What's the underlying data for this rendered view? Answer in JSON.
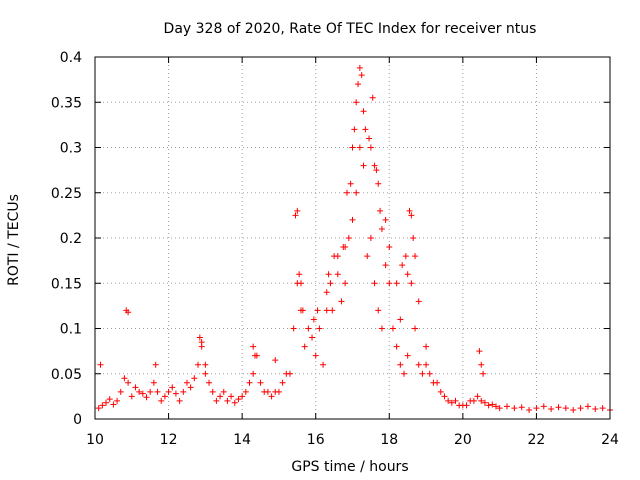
{
  "chart_data": {
    "type": "scatter",
    "title": "Day 328 of 2020, Rate Of TEC Index for receiver ntus",
    "xlabel": "GPS time / hours",
    "ylabel": "ROTI / TECUs",
    "xlim": [
      10,
      24
    ],
    "ylim": [
      0,
      0.4
    ],
    "x_ticks": [
      "10",
      "12",
      "14",
      "16",
      "18",
      "20",
      "22",
      "24"
    ],
    "y_ticks": [
      "0",
      "0.05",
      "0.1",
      "0.15",
      "0.2",
      "0.25",
      "0.3",
      "0.35",
      "0.4"
    ],
    "grid": true,
    "marker": "+",
    "color": "#ff0000",
    "series": [
      {
        "name": "ROTI",
        "x": [
          10.1,
          10.2,
          10.3,
          10.4,
          10.5,
          10.6,
          10.7,
          10.8,
          10.9,
          11.0,
          11.1,
          11.2,
          11.3,
          11.4,
          11.5,
          11.6,
          11.7,
          11.8,
          11.9,
          12.0,
          12.1,
          12.2,
          12.3,
          12.4,
          12.5,
          12.6,
          12.7,
          12.8,
          12.9,
          13.0,
          13.1,
          13.2,
          13.3,
          13.4,
          13.5,
          13.6,
          13.7,
          13.8,
          13.9,
          14.0,
          14.1,
          14.2,
          14.3,
          14.4,
          14.5,
          14.6,
          14.7,
          14.8,
          14.9,
          15.0,
          15.1,
          15.2,
          15.3,
          15.4,
          15.5,
          15.6,
          15.7,
          15.8,
          15.9,
          16.0,
          16.1,
          16.2,
          16.3,
          16.4,
          16.5,
          16.6,
          16.7,
          16.8,
          16.9,
          17.0,
          17.1,
          17.2,
          17.3,
          17.4,
          17.5,
          17.6,
          17.7,
          17.8,
          17.9,
          18.0,
          18.1,
          18.2,
          18.3,
          18.4,
          18.5,
          18.6,
          18.7,
          18.8,
          18.9,
          19.0,
          19.1,
          19.2,
          19.3,
          19.4,
          19.5,
          19.6,
          19.7,
          19.8,
          19.9,
          20.0,
          20.1,
          20.2,
          20.3,
          20.4,
          20.5,
          20.6,
          20.7,
          20.8,
          20.9,
          21.0,
          21.2,
          21.4,
          21.6,
          21.8,
          22.0,
          22.2,
          22.4,
          22.6,
          22.8,
          23.0,
          23.2,
          23.4,
          23.6,
          23.8,
          24.0,
          10.85,
          10.9,
          10.15,
          11.65,
          12.85,
          12.9,
          13.0,
          14.3,
          14.35,
          14.9,
          15.45,
          15.5,
          15.55,
          15.6,
          15.65,
          15.95,
          16.05,
          16.3,
          16.35,
          16.45,
          16.6,
          16.75,
          16.8,
          16.85,
          16.95,
          17.0,
          17.05,
          17.1,
          17.15,
          17.2,
          17.25,
          17.3,
          17.35,
          17.45,
          17.5,
          17.55,
          17.6,
          17.65,
          17.7,
          17.75,
          17.8,
          17.9,
          18.0,
          18.2,
          18.3,
          18.35,
          18.45,
          18.5,
          18.55,
          18.6,
          18.65,
          18.7,
          18.8,
          19.0,
          20.45,
          20.5,
          20.55
        ],
        "y": [
          0.012,
          0.015,
          0.018,
          0.022,
          0.016,
          0.02,
          0.03,
          0.045,
          0.04,
          0.025,
          0.035,
          0.03,
          0.028,
          0.024,
          0.03,
          0.04,
          0.03,
          0.02,
          0.025,
          0.03,
          0.035,
          0.028,
          0.02,
          0.03,
          0.04,
          0.035,
          0.045,
          0.06,
          0.08,
          0.05,
          0.04,
          0.03,
          0.02,
          0.025,
          0.03,
          0.02,
          0.025,
          0.018,
          0.022,
          0.025,
          0.03,
          0.04,
          0.05,
          0.07,
          0.04,
          0.03,
          0.03,
          0.025,
          0.03,
          0.03,
          0.04,
          0.05,
          0.05,
          0.1,
          0.15,
          0.12,
          0.08,
          0.1,
          0.09,
          0.07,
          0.1,
          0.06,
          0.12,
          0.15,
          0.18,
          0.16,
          0.13,
          0.15,
          0.2,
          0.22,
          0.25,
          0.3,
          0.28,
          0.18,
          0.2,
          0.15,
          0.12,
          0.1,
          0.17,
          0.15,
          0.1,
          0.08,
          0.06,
          0.05,
          0.07,
          0.15,
          0.1,
          0.06,
          0.05,
          0.06,
          0.05,
          0.04,
          0.04,
          0.03,
          0.025,
          0.02,
          0.018,
          0.02,
          0.015,
          0.015,
          0.015,
          0.02,
          0.02,
          0.025,
          0.02,
          0.018,
          0.015,
          0.016,
          0.014,
          0.012,
          0.014,
          0.012,
          0.013,
          0.01,
          0.012,
          0.014,
          0.011,
          0.013,
          0.012,
          0.01,
          0.012,
          0.014,
          0.011,
          0.012,
          0.01,
          0.12,
          0.118,
          0.06,
          0.06,
          0.09,
          0.085,
          0.06,
          0.08,
          0.07,
          0.065,
          0.225,
          0.23,
          0.16,
          0.15,
          0.12,
          0.11,
          0.12,
          0.14,
          0.16,
          0.12,
          0.18,
          0.19,
          0.19,
          0.25,
          0.26,
          0.3,
          0.32,
          0.35,
          0.37,
          0.388,
          0.38,
          0.34,
          0.32,
          0.31,
          0.3,
          0.355,
          0.28,
          0.275,
          0.26,
          0.23,
          0.21,
          0.22,
          0.19,
          0.15,
          0.11,
          0.17,
          0.18,
          0.16,
          0.23,
          0.225,
          0.2,
          0.18,
          0.13,
          0.08,
          0.075,
          0.06,
          0.05
        ]
      }
    ]
  }
}
